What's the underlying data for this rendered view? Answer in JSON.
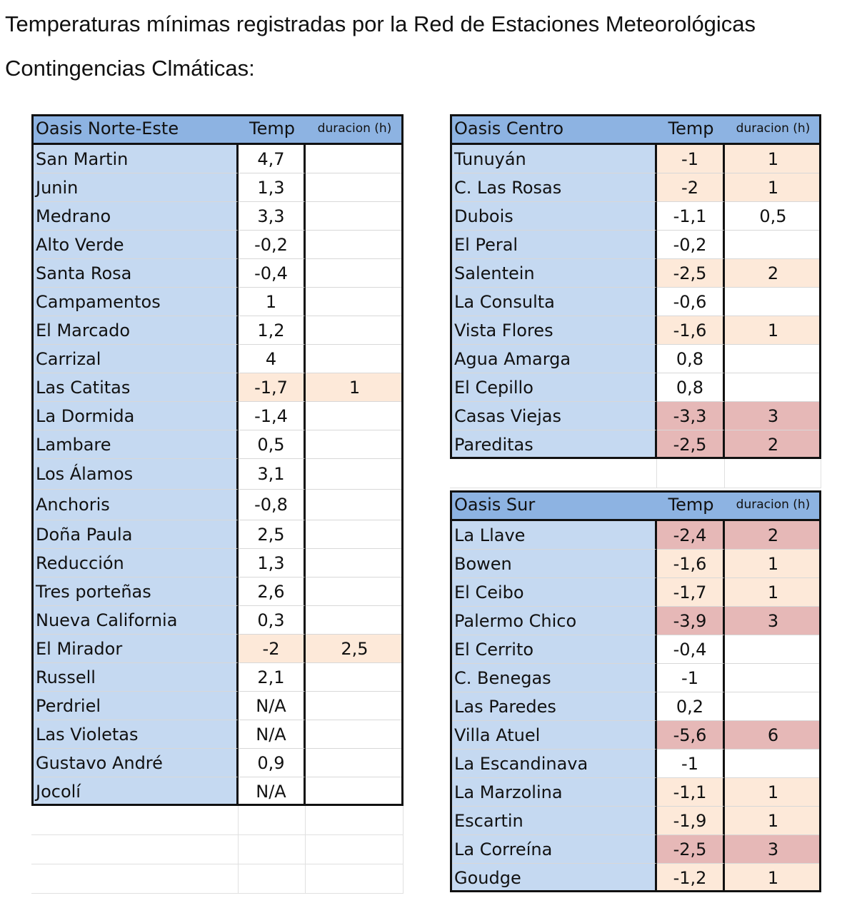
{
  "title_line1": "Temperaturas mínimas registradas por la Red de Estaciones Meteorológicas",
  "title_line2": "Contingencias Clmáticas:",
  "colors": {
    "header": "#8db3e2",
    "name_col": "#c5d9f1",
    "low": "#fde9d9",
    "high": "#e6b8b7"
  },
  "tables": [
    {
      "id": "norte-este",
      "header": [
        "Oasis Norte-Este",
        "Temp",
        "duracion (h)"
      ],
      "rows": [
        [
          "San Martin",
          "4,7",
          "",
          "none"
        ],
        [
          "Junin",
          "1,3",
          "",
          "none"
        ],
        [
          "Medrano",
          "3,3",
          "",
          "none"
        ],
        [
          "Alto Verde",
          "-0,2",
          "",
          "none"
        ],
        [
          "Santa Rosa",
          "-0,4",
          "",
          "none"
        ],
        [
          "Campamentos",
          "1",
          "",
          "none"
        ],
        [
          "El Marcado",
          "1,2",
          "",
          "none"
        ],
        [
          "Carrizal",
          "4",
          "",
          "none"
        ],
        [
          "Las Catitas",
          "-1,7",
          "1",
          "low"
        ],
        [
          "La Dormida",
          "-1,4",
          "",
          "none"
        ],
        [
          "Lambare",
          "0,5",
          "",
          "none"
        ],
        [
          "Los Álamos",
          "3,1",
          "",
          "none"
        ],
        [
          "Anchoris",
          "-0,8",
          "",
          "none"
        ],
        [
          "Doña Paula",
          "2,5",
          "",
          "none"
        ],
        [
          "Reducción",
          "1,3",
          "",
          "none"
        ],
        [
          "Tres porteñas",
          "2,6",
          "",
          "none"
        ],
        [
          "Nueva California",
          "0,3",
          "",
          "none"
        ],
        [
          "El Mirador",
          "-2",
          "2,5",
          "low"
        ],
        [
          "Russell",
          "2,1",
          "",
          "none"
        ],
        [
          "Perdriel",
          "N/A",
          "",
          "none"
        ],
        [
          "Las Violetas",
          "N/A",
          "",
          "none"
        ],
        [
          "Gustavo André",
          "0,9",
          "",
          "none"
        ],
        [
          "Jocolí",
          "N/A",
          "",
          "none"
        ]
      ]
    },
    {
      "id": "centro",
      "header": [
        "Oasis Centro",
        "Temp",
        "duracion (h)"
      ],
      "rows": [
        [
          "Tunuyán",
          "-1",
          "1",
          "low"
        ],
        [
          "C. Las Rosas",
          "-2",
          "1",
          "low"
        ],
        [
          "Dubois",
          "-1,1",
          "0,5",
          "none"
        ],
        [
          "El Peral",
          "-0,2",
          "",
          "none"
        ],
        [
          "Salentein",
          "-2,5",
          "2",
          "low"
        ],
        [
          "La Consulta",
          "-0,6",
          "",
          "none"
        ],
        [
          "Vista Flores",
          "-1,6",
          "1",
          "low"
        ],
        [
          "Agua Amarga",
          "0,8",
          "",
          "none"
        ],
        [
          "El Cepillo",
          "0,8",
          "",
          "none"
        ],
        [
          "Casas Viejas",
          "-3,3",
          "3",
          "high"
        ],
        [
          "Pareditas",
          "-2,5",
          "2",
          "high"
        ]
      ]
    },
    {
      "id": "sur",
      "header": [
        "Oasis Sur",
        "Temp",
        "duracion (h)"
      ],
      "rows": [
        [
          "La Llave",
          "-2,4",
          "2",
          "high"
        ],
        [
          "Bowen",
          "-1,6",
          "1",
          "low"
        ],
        [
          "El Ceibo",
          "-1,7",
          "1",
          "low"
        ],
        [
          "Palermo Chico",
          "-3,9",
          "3",
          "high"
        ],
        [
          "El Cerrito",
          "-0,4",
          "",
          "none"
        ],
        [
          "C. Benegas",
          "-1",
          "",
          "none"
        ],
        [
          "Las Paredes",
          "0,2",
          "",
          "none"
        ],
        [
          "Villa Atuel",
          "-5,6",
          "6",
          "high"
        ],
        [
          "La Escandinava",
          "-1",
          "",
          "none"
        ],
        [
          "La Marzolina",
          "-1,1",
          "1",
          "low"
        ],
        [
          "Escartin",
          "-1,9",
          "1",
          "low"
        ],
        [
          "La Correína",
          "-2,5",
          "3",
          "high"
        ],
        [
          "Goudge",
          "-1,2",
          "1",
          "low"
        ]
      ]
    }
  ]
}
